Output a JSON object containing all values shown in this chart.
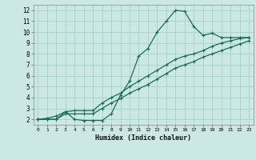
{
  "xlabel": "Humidex (Indice chaleur)",
  "bg_color": "#cce8e4",
  "grid_color": "#aad4cf",
  "line_color": "#1a6b5a",
  "xlim": [
    -0.5,
    23.5
  ],
  "ylim": [
    1.5,
    12.5
  ],
  "xticks": [
    0,
    1,
    2,
    3,
    4,
    5,
    6,
    7,
    8,
    9,
    10,
    11,
    12,
    13,
    14,
    15,
    16,
    17,
    18,
    19,
    20,
    21,
    22,
    23
  ],
  "yticks": [
    2,
    3,
    4,
    5,
    6,
    7,
    8,
    9,
    10,
    11,
    12
  ],
  "line1_y": [
    2.0,
    2.1,
    2.3,
    2.7,
    2.0,
    1.9,
    1.9,
    1.9,
    2.5,
    4.2,
    5.5,
    7.8,
    8.5,
    10.0,
    11.0,
    12.0,
    11.9,
    10.5,
    9.7,
    9.9,
    9.5,
    9.5,
    9.5,
    9.5
  ],
  "line2_y": [
    2.0,
    2.0,
    2.0,
    2.7,
    2.8,
    2.8,
    2.8,
    3.5,
    4.0,
    4.4,
    5.0,
    5.5,
    6.0,
    6.5,
    7.0,
    7.5,
    7.8,
    8.0,
    8.3,
    8.7,
    9.0,
    9.2,
    9.4,
    9.5
  ],
  "line3_y": [
    2.0,
    2.0,
    2.0,
    2.5,
    2.5,
    2.5,
    2.5,
    3.0,
    3.5,
    3.9,
    4.4,
    4.8,
    5.2,
    5.7,
    6.2,
    6.7,
    7.0,
    7.3,
    7.7,
    8.0,
    8.3,
    8.6,
    8.9,
    9.2
  ],
  "tick_fontsize_x": 4.5,
  "tick_fontsize_y": 5.5,
  "xlabel_fontsize": 6.0
}
